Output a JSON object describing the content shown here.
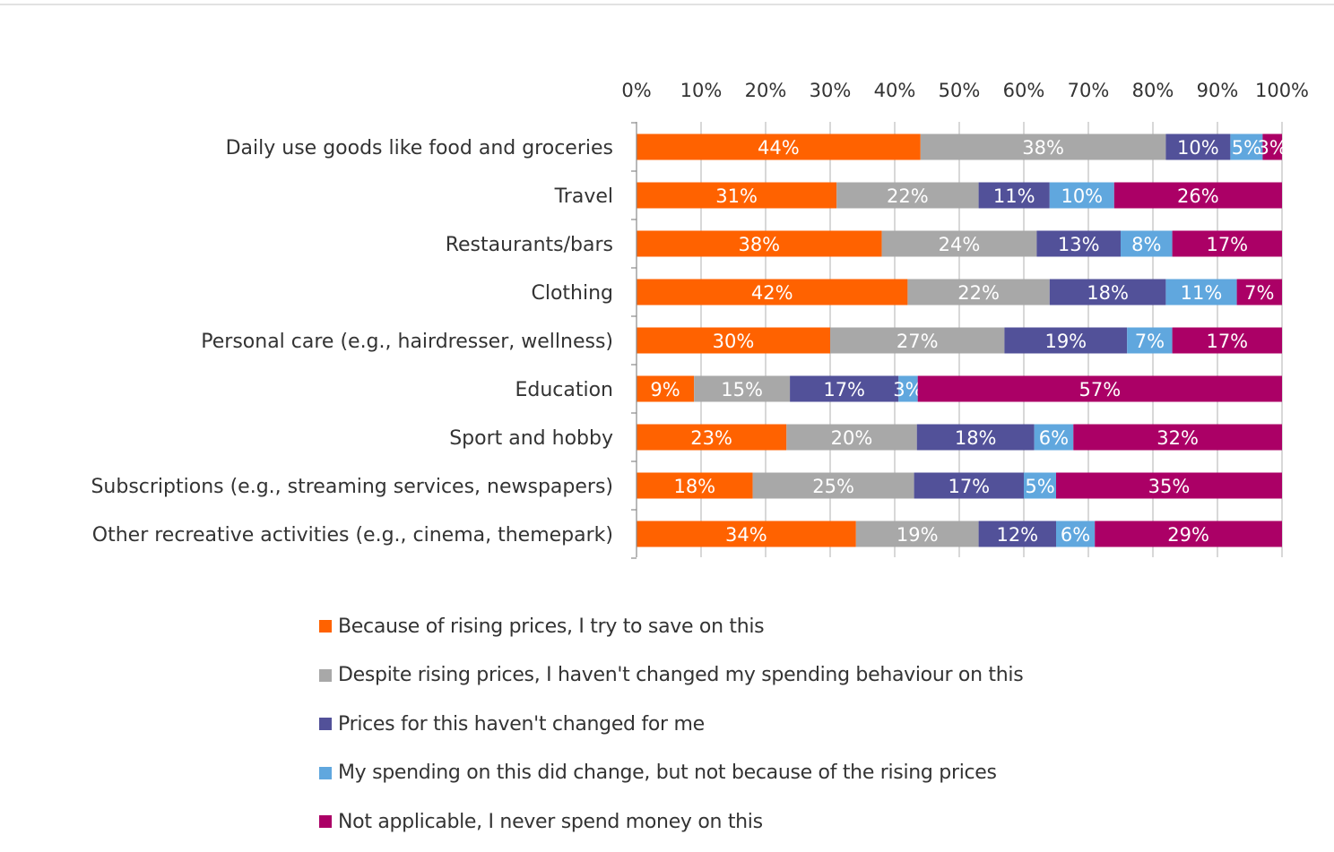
{
  "chart_data": {
    "type": "bar",
    "orientation": "horizontal",
    "stacked": "percent",
    "title": "",
    "xlabel": "",
    "ylabel": "",
    "xlim": [
      0,
      100
    ],
    "x_ticks": [
      "0%",
      "10%",
      "20%",
      "30%",
      "40%",
      "50%",
      "60%",
      "70%",
      "80%",
      "90%",
      "100%"
    ],
    "x_axis_position": "top",
    "grid": true,
    "legend_position": "bottom",
    "categories": [
      "Daily use goods like food and groceries",
      "Travel",
      "Restaurants/bars",
      "Clothing",
      "Personal care (e.g., hairdresser, wellness)",
      "Education",
      "Sport and hobby",
      "Subscriptions (e.g., streaming services, newspapers)",
      "Other recreative activities (e.g., cinema, themepark)"
    ],
    "series": [
      {
        "name": "Because of rising prices, I try to save on this",
        "color": "#ff6200",
        "values": [
          44,
          31,
          38,
          42,
          30,
          9,
          23,
          18,
          34
        ]
      },
      {
        "name": "Despite rising prices, I haven't changed my spending behaviour on this",
        "color": "#a8a8a8",
        "values": [
          38,
          22,
          24,
          22,
          27,
          15,
          20,
          25,
          19
        ]
      },
      {
        "name": "Prices for this haven't changed for me",
        "color": "#525199",
        "values": [
          10,
          11,
          13,
          18,
          19,
          17,
          18,
          17,
          12
        ]
      },
      {
        "name": "My spending on this did change, but not because of the rising prices",
        "color": "#60a7de",
        "values": [
          5,
          10,
          8,
          11,
          7,
          3,
          6,
          5,
          6
        ]
      },
      {
        "name": "Not applicable, I never spend money on this",
        "color": "#ab0066",
        "values": [
          3,
          26,
          17,
          7,
          17,
          57,
          32,
          35,
          29
        ]
      }
    ],
    "value_label_suffix": "%"
  }
}
